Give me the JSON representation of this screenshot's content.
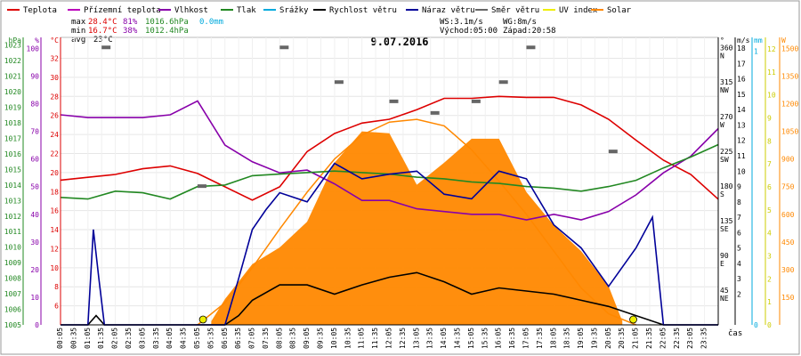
{
  "legend": [
    {
      "name": "Teplota",
      "color": "#dd0000"
    },
    {
      "name": "Přízemní teplota",
      "color": "#bb00bb"
    },
    {
      "name": "Vlhkost",
      "color": "#8800aa"
    },
    {
      "name": "Tlak",
      "color": "#228822"
    },
    {
      "name": "Srážky",
      "color": "#00aadd"
    },
    {
      "name": "Rychlost větru",
      "color": "#000000"
    },
    {
      "name": "Náraz větru",
      "color": "#000099"
    },
    {
      "name": "Směr větru",
      "color": "#666666"
    },
    {
      "name": "UV index",
      "color": "#eeee00"
    },
    {
      "name": "Solar",
      "color": "#ff8800"
    }
  ],
  "stats": {
    "max": {
      "label": "max",
      "temp": "28.4°C",
      "hum": "81%",
      "press": "1016.6hPa",
      "rain": "0.0mm"
    },
    "min": {
      "label": "min",
      "temp": "16.7°C",
      "hum": "38%",
      "press": "1012.4hPa"
    },
    "avg": {
      "label": "avg",
      "temp": "23°C"
    }
  },
  "wind_info": {
    "ws": "WS:3.1m/s",
    "wg": "WG:8m/s",
    "sunrise": "Východ:05:00",
    "sunset": "Západ:20:58"
  },
  "chart_data": {
    "type": "line",
    "title": "9.07.2016",
    "xlabel": "čas",
    "colors": {
      "temp": "#dd0000",
      "humidity": "#8800aa",
      "pressure": "#228822",
      "gust": "#000099",
      "speed": "#000000",
      "direction": "#666666",
      "solar": "#ff8800",
      "uv": "#eeee00"
    },
    "axes": {
      "hpa": {
        "unit": "hPa",
        "ticks": [
          "1005",
          "1006",
          "1007",
          "1008",
          "1009",
          "1010",
          "1011",
          "1012",
          "1013",
          "1014",
          "1015",
          "1016",
          "1017",
          "1018",
          "1019",
          "1020",
          "1021",
          "1022",
          "1023"
        ],
        "color": "#228822"
      },
      "pct": {
        "unit": "%",
        "ticks": [
          "0",
          "10",
          "20",
          "30",
          "40",
          "50",
          "60",
          "70",
          "80",
          "90",
          "100"
        ],
        "color": "#8800aa"
      },
      "celsius": {
        "unit": "°C",
        "ticks": [
          "6",
          "8",
          "10",
          "12",
          "14",
          "16",
          "18",
          "20",
          "22",
          "24",
          "26",
          "28",
          "30",
          "32"
        ],
        "color": "#dd0000"
      },
      "dir": {
        "unit": "°",
        "ticks": [
          "45",
          "90",
          "135",
          "180",
          "225",
          "270",
          "315",
          "360"
        ],
        "letters": [
          "NE",
          "E",
          "SE",
          "S",
          "SW",
          "W",
          "NW",
          "N"
        ]
      },
      "ms": {
        "unit": "m/s",
        "ticks": [
          "2",
          "3",
          "4",
          "5",
          "6",
          "7",
          "8",
          "9",
          "10",
          "11",
          "12",
          "13",
          "14",
          "15",
          "16",
          "17",
          "18"
        ],
        "color": "#000000"
      },
      "mm": {
        "unit": "mm",
        "ticks": [
          "0",
          "1"
        ],
        "color": "#00aadd"
      },
      "uv": {
        "unit": "",
        "ticks": [
          "0",
          "1",
          "2",
          "3",
          "4",
          "5",
          "6",
          "7",
          "8",
          "9",
          "10",
          "11",
          "12"
        ],
        "color": "#cccc00"
      },
      "solar": {
        "unit": "W",
        "ticks": [
          "150",
          "300",
          "450",
          "600",
          "750",
          "900",
          "1050",
          "1200",
          "1350",
          "1500"
        ],
        "color": "#ff8800"
      }
    },
    "x_ticks": [
      "00:05",
      "00:35",
      "01:05",
      "01:35",
      "02:05",
      "02:35",
      "03:05",
      "03:35",
      "04:05",
      "04:35",
      "05:05",
      "05:35",
      "06:05",
      "06:35",
      "07:05",
      "07:35",
      "08:05",
      "08:35",
      "09:05",
      "09:35",
      "10:05",
      "10:35",
      "11:05",
      "11:35",
      "12:05",
      "12:35",
      "13:05",
      "13:35",
      "14:05",
      "14:35",
      "15:05",
      "15:35",
      "16:05",
      "16:35",
      "17:05",
      "17:35",
      "18:05",
      "18:35",
      "19:05",
      "19:35",
      "20:05",
      "20:35",
      "21:05",
      "21:35",
      "22:05",
      "22:35",
      "23:05",
      "23:35"
    ],
    "series": [
      {
        "name": "Teplota",
        "unit": "°C",
        "x": [
          0,
          1,
          2,
          3,
          4,
          5,
          6,
          7,
          8,
          9,
          10,
          11,
          12,
          13,
          14,
          15,
          16,
          17,
          18,
          19,
          20,
          21,
          22,
          23,
          24
        ],
        "values": [
          19.2,
          19.5,
          19.8,
          20.4,
          20.7,
          19.9,
          18.5,
          17.1,
          18.5,
          22.2,
          24.1,
          25.2,
          25.6,
          26.6,
          27.8,
          27.8,
          28.0,
          27.9,
          27.9,
          27.1,
          25.6,
          23.4,
          21.3,
          19.8,
          17.2
        ]
      },
      {
        "name": "Vlhkost",
        "unit": "%",
        "x": [
          0,
          1,
          2,
          3,
          4,
          5,
          6,
          7,
          8,
          9,
          10,
          11,
          12,
          13,
          14,
          15,
          16,
          17,
          18,
          19,
          20,
          21,
          22,
          23,
          24
        ],
        "values": [
          76,
          75,
          75,
          75,
          76,
          81,
          65,
          59,
          55,
          56,
          51,
          45,
          45,
          42,
          41,
          40,
          40,
          38,
          40,
          38,
          41,
          47,
          55,
          61,
          71
        ]
      },
      {
        "name": "Tlak",
        "unit": "hPa",
        "x": [
          0,
          1,
          2,
          3,
          4,
          5,
          6,
          7,
          8,
          9,
          10,
          11,
          12,
          13,
          14,
          15,
          16,
          17,
          18,
          19,
          20,
          21,
          22,
          23,
          24
        ],
        "values": [
          1013.2,
          1013.1,
          1013.6,
          1013.5,
          1013.1,
          1013.9,
          1014.0,
          1014.6,
          1014.7,
          1014.8,
          1014.9,
          1014.8,
          1014.7,
          1014.5,
          1014.4,
          1014.2,
          1014.1,
          1013.9,
          1013.8,
          1013.6,
          1013.9,
          1014.3,
          1015.1,
          1015.8,
          1016.6
        ]
      },
      {
        "name": "Rychlost větru",
        "unit": "m/s",
        "x": [
          0,
          1,
          1.3,
          1.6,
          2,
          3,
          4,
          5,
          6,
          6.5,
          7,
          8,
          9,
          10,
          11,
          12,
          13,
          14,
          15,
          16,
          17,
          18,
          19,
          20,
          21,
          22,
          23,
          24
        ],
        "values": [
          0,
          0,
          0.6,
          0,
          0,
          0,
          0,
          0,
          0,
          0.6,
          1.6,
          2.6,
          2.6,
          2.0,
          2.6,
          3.1,
          3.4,
          2.8,
          2.0,
          2.4,
          2.2,
          2.0,
          1.6,
          1.2,
          0.6,
          0,
          0,
          0
        ]
      },
      {
        "name": "Náraz větru",
        "unit": "m/s",
        "x": [
          0,
          1,
          1.2,
          1.4,
          1.6,
          2,
          3,
          4,
          5,
          6,
          6.5,
          7,
          7.5,
          8,
          9,
          10,
          11,
          12,
          13,
          14,
          15,
          16,
          17,
          18,
          19,
          20,
          21,
          21.6,
          22,
          23,
          24
        ],
        "values": [
          0,
          0,
          6.2,
          3.0,
          0,
          0,
          0,
          0,
          0,
          0,
          3.0,
          6.2,
          7.5,
          8.6,
          8.0,
          10.5,
          9.5,
          9.8,
          10.0,
          8.5,
          8.2,
          10.0,
          9.5,
          6.5,
          5.0,
          2.5,
          5.0,
          7.0,
          0,
          0,
          0
        ]
      }
    ],
    "solar_curve": {
      "x": [
        5,
        6,
        7,
        8,
        9,
        10,
        11,
        12,
        13,
        14,
        15,
        16,
        17,
        18,
        19,
        20,
        21
      ],
      "values": [
        0,
        120,
        310,
        520,
        720,
        900,
        1030,
        1100,
        1115,
        1080,
        950,
        780,
        600,
        400,
        200,
        60,
        0
      ]
    },
    "solar_measured": {
      "x": [
        5.5,
        6,
        7,
        8,
        9,
        10,
        11,
        12,
        13,
        14,
        15,
        16,
        17,
        18,
        19,
        20,
        20.5
      ],
      "values": [
        20,
        140,
        330,
        420,
        560,
        880,
        1050,
        1040,
        760,
        880,
        1010,
        1010,
        720,
        540,
        400,
        210,
        20
      ]
    },
    "wind_direction": {
      "x": [
        1.5,
        5,
        8,
        10,
        12,
        13.5,
        15,
        16,
        17,
        20
      ],
      "values": [
        360,
        180,
        360,
        315,
        290,
        275,
        290,
        315,
        360,
        225
      ]
    }
  }
}
